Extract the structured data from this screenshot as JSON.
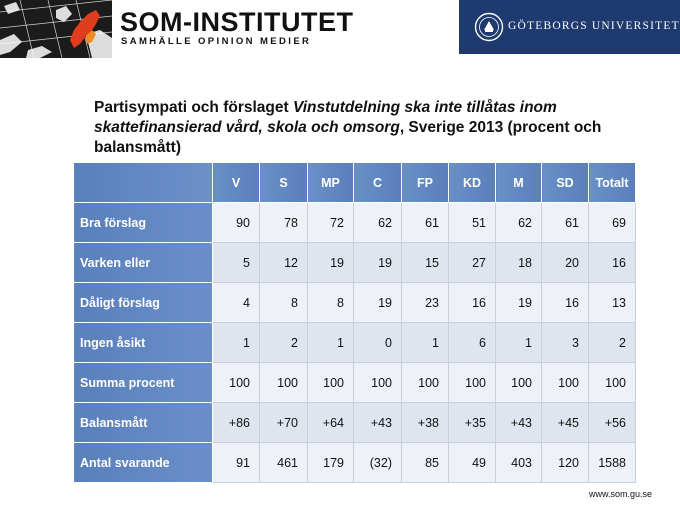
{
  "header": {
    "org_name": "SOM-INSTITUTET",
    "org_tagline": "SAMHÄLLE OPINION MEDIER",
    "university": "GÖTEBORGS UNIVERSITET"
  },
  "title": {
    "part1": "Partisympati och förslaget ",
    "part2_italic": "Vinstutdelning ska inte tillåtas inom skattefinansierad vård, skola och omsorg",
    "part3": ", Sverige 2013 (procent och balansmått)"
  },
  "table": {
    "columns": [
      "V",
      "S",
      "MP",
      "C",
      "FP",
      "KD",
      "M",
      "SD",
      "Totalt"
    ],
    "rows": [
      {
        "label": "Bra förslag",
        "values": [
          "90",
          "78",
          "72",
          "62",
          "61",
          "51",
          "62",
          "61",
          "69"
        ]
      },
      {
        "label": "Varken eller",
        "values": [
          "5",
          "12",
          "19",
          "19",
          "15",
          "27",
          "18",
          "20",
          "16"
        ]
      },
      {
        "label": "Dåligt förslag",
        "values": [
          "4",
          "8",
          "8",
          "19",
          "23",
          "16",
          "19",
          "16",
          "13"
        ]
      },
      {
        "label": "Ingen åsikt",
        "values": [
          "1",
          "2",
          "1",
          "0",
          "1",
          "6",
          "1",
          "3",
          "2"
        ]
      },
      {
        "label": "Summa procent",
        "values": [
          "100",
          "100",
          "100",
          "100",
          "100",
          "100",
          "100",
          "100",
          "100"
        ]
      },
      {
        "label": "Balansmått",
        "values": [
          "+86",
          "+70",
          "+64",
          "+43",
          "+38",
          "+35",
          "+43",
          "+45",
          "+56"
        ]
      },
      {
        "label": "Antal svarande",
        "values": [
          "91",
          "461",
          "179",
          "(32)",
          "85",
          "49",
          "403",
          "120",
          "1588"
        ]
      }
    ]
  },
  "footer": {
    "url": "www.som.gu.se"
  }
}
